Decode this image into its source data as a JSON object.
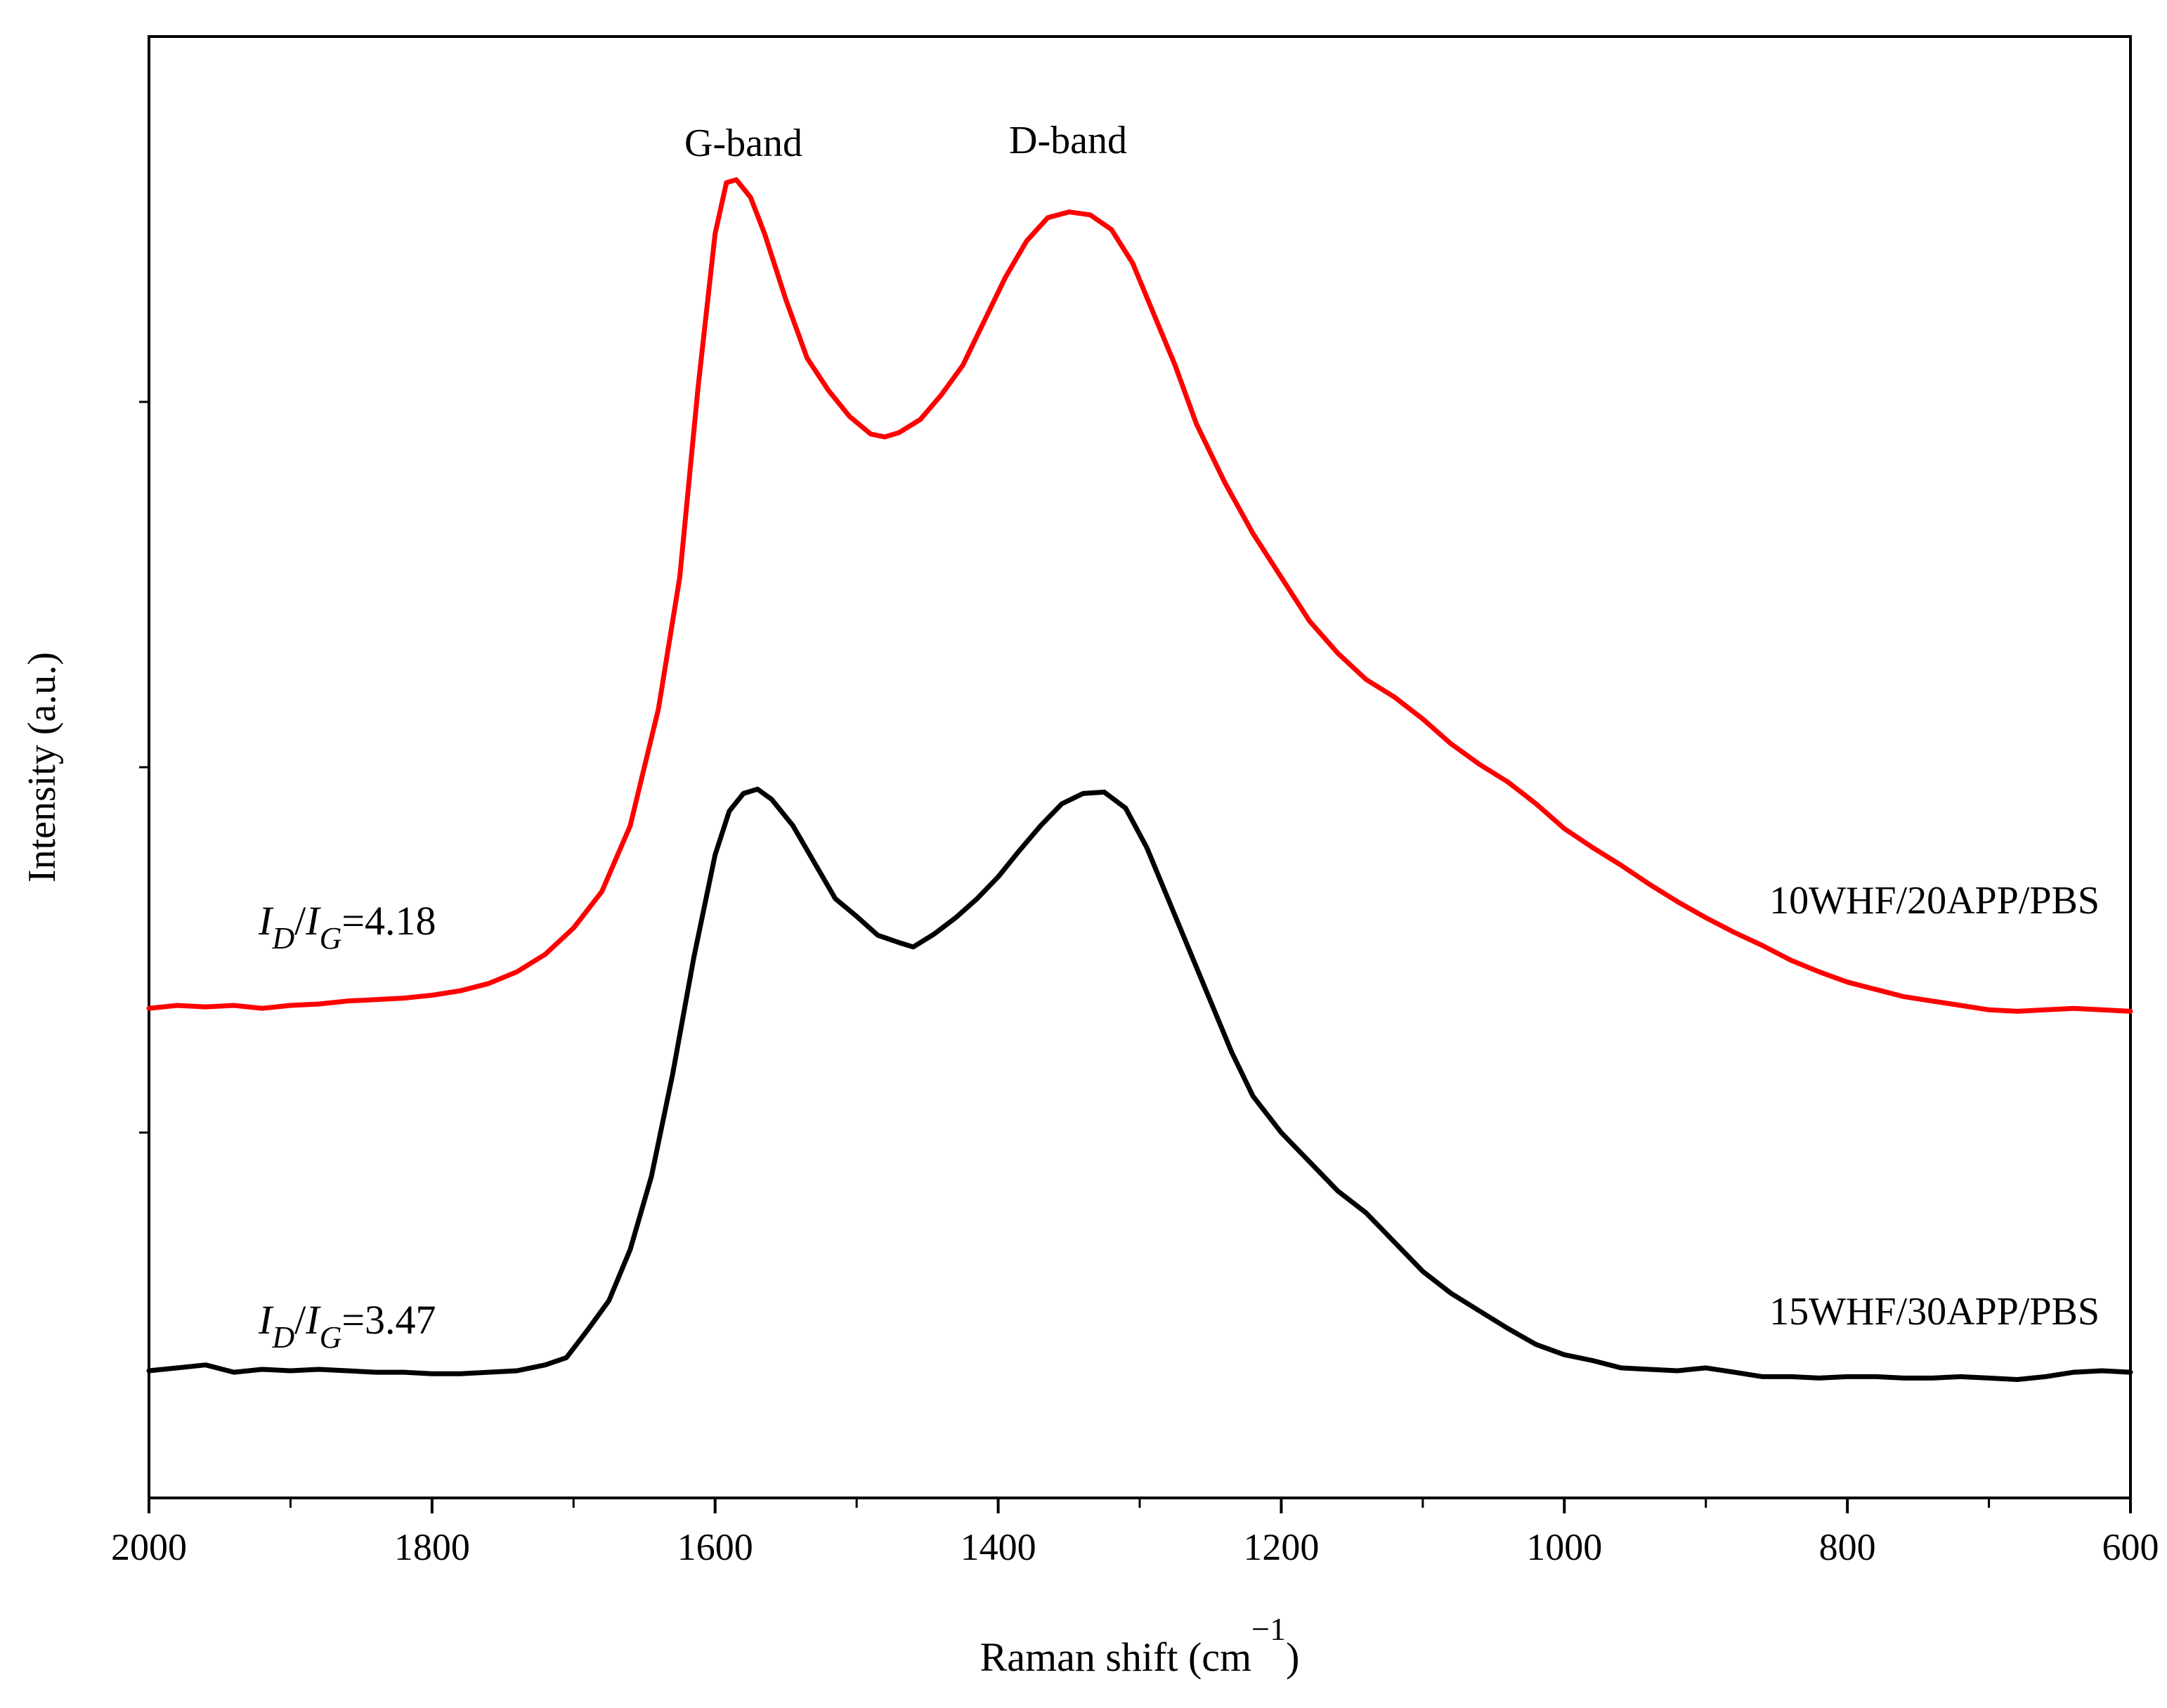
{
  "chart_data": {
    "type": "line",
    "title": "",
    "xlabel_main": "Raman shift (cm",
    "xlabel_sup": "−1",
    "xlabel_close": ")",
    "ylabel": "Intensity (a.u.)",
    "xlim": [
      2000,
      600
    ],
    "x_reversed": true,
    "x_tick_labels": [
      "2000",
      "1800",
      "1600",
      "1400",
      "1200",
      "1000",
      "800",
      "600"
    ],
    "x_ticks": [
      2000,
      1800,
      1600,
      1400,
      1200,
      1000,
      800,
      600
    ],
    "x_minor_ticks": [
      1900,
      1700,
      1500,
      1300,
      1100,
      900,
      700
    ],
    "ylim": [
      0,
      100
    ],
    "y_ticks_unlabeled": [
      25,
      50,
      75
    ],
    "grid": false,
    "annotations": {
      "g_band": "G-band",
      "d_band": "D-band"
    },
    "series": [
      {
        "name": "10WHF/20APP/PBS",
        "color": "#ff0000",
        "ratio_label": {
          "i1": "I",
          "sub1": "D",
          "slash": "/",
          "i2": "I",
          "sub2": "G",
          "value": "=4.18"
        },
        "points": [
          [
            2000,
            33.5
          ],
          [
            1980,
            33.7
          ],
          [
            1960,
            33.6
          ],
          [
            1940,
            33.7
          ],
          [
            1920,
            33.5
          ],
          [
            1900,
            33.7
          ],
          [
            1880,
            33.8
          ],
          [
            1860,
            34.0
          ],
          [
            1840,
            34.1
          ],
          [
            1820,
            34.2
          ],
          [
            1800,
            34.4
          ],
          [
            1780,
            34.7
          ],
          [
            1760,
            35.2
          ],
          [
            1740,
            36.0
          ],
          [
            1720,
            37.2
          ],
          [
            1700,
            39.0
          ],
          [
            1680,
            41.5
          ],
          [
            1660,
            46.0
          ],
          [
            1640,
            54.0
          ],
          [
            1625,
            63.0
          ],
          [
            1612,
            76.0
          ],
          [
            1600,
            86.5
          ],
          [
            1592,
            90.0
          ],
          [
            1585,
            90.2
          ],
          [
            1575,
            89.0
          ],
          [
            1565,
            86.5
          ],
          [
            1550,
            82.0
          ],
          [
            1535,
            78.0
          ],
          [
            1520,
            75.8
          ],
          [
            1505,
            74.0
          ],
          [
            1490,
            72.8
          ],
          [
            1480,
            72.6
          ],
          [
            1470,
            72.9
          ],
          [
            1455,
            73.8
          ],
          [
            1440,
            75.5
          ],
          [
            1425,
            77.5
          ],
          [
            1410,
            80.5
          ],
          [
            1395,
            83.5
          ],
          [
            1380,
            86.0
          ],
          [
            1365,
            87.6
          ],
          [
            1350,
            88.0
          ],
          [
            1335,
            87.8
          ],
          [
            1320,
            86.8
          ],
          [
            1305,
            84.5
          ],
          [
            1290,
            81.0
          ],
          [
            1275,
            77.5
          ],
          [
            1260,
            73.5
          ],
          [
            1240,
            69.5
          ],
          [
            1220,
            66.0
          ],
          [
            1200,
            63.0
          ],
          [
            1180,
            60.0
          ],
          [
            1160,
            57.8
          ],
          [
            1140,
            56.0
          ],
          [
            1120,
            54.8
          ],
          [
            1100,
            53.3
          ],
          [
            1080,
            51.6
          ],
          [
            1060,
            50.2
          ],
          [
            1040,
            49.0
          ],
          [
            1020,
            47.5
          ],
          [
            1000,
            45.8
          ],
          [
            980,
            44.5
          ],
          [
            960,
            43.3
          ],
          [
            940,
            42.0
          ],
          [
            920,
            40.8
          ],
          [
            900,
            39.7
          ],
          [
            880,
            38.7
          ],
          [
            860,
            37.8
          ],
          [
            840,
            36.8
          ],
          [
            820,
            36.0
          ],
          [
            800,
            35.3
          ],
          [
            780,
            34.8
          ],
          [
            760,
            34.3
          ],
          [
            740,
            34.0
          ],
          [
            720,
            33.7
          ],
          [
            700,
            33.4
          ],
          [
            680,
            33.3
          ],
          [
            660,
            33.4
          ],
          [
            640,
            33.5
          ],
          [
            620,
            33.4
          ],
          [
            600,
            33.3
          ]
        ]
      },
      {
        "name": "15WHF/30APP/PBS",
        "color": "#000000",
        "ratio_label": {
          "i1": "I",
          "sub1": "D",
          "slash": "/",
          "i2": "I",
          "sub2": "G",
          "value": "=3.47"
        },
        "points": [
          [
            2000,
            8.7
          ],
          [
            1980,
            8.9
          ],
          [
            1960,
            9.1
          ],
          [
            1940,
            8.6
          ],
          [
            1920,
            8.8
          ],
          [
            1900,
            8.7
          ],
          [
            1880,
            8.8
          ],
          [
            1860,
            8.7
          ],
          [
            1840,
            8.6
          ],
          [
            1820,
            8.6
          ],
          [
            1800,
            8.5
          ],
          [
            1780,
            8.5
          ],
          [
            1760,
            8.6
          ],
          [
            1740,
            8.7
          ],
          [
            1720,
            9.1
          ],
          [
            1705,
            9.6
          ],
          [
            1690,
            11.5
          ],
          [
            1675,
            13.5
          ],
          [
            1660,
            17.0
          ],
          [
            1645,
            22.0
          ],
          [
            1630,
            29.0
          ],
          [
            1615,
            37.0
          ],
          [
            1600,
            44.0
          ],
          [
            1590,
            47.0
          ],
          [
            1580,
            48.2
          ],
          [
            1570,
            48.5
          ],
          [
            1560,
            47.8
          ],
          [
            1545,
            46.0
          ],
          [
            1530,
            43.5
          ],
          [
            1515,
            41.0
          ],
          [
            1500,
            39.8
          ],
          [
            1485,
            38.5
          ],
          [
            1470,
            38.0
          ],
          [
            1460,
            37.7
          ],
          [
            1445,
            38.6
          ],
          [
            1430,
            39.7
          ],
          [
            1415,
            41.0
          ],
          [
            1400,
            42.5
          ],
          [
            1385,
            44.3
          ],
          [
            1370,
            46.0
          ],
          [
            1355,
            47.5
          ],
          [
            1340,
            48.2
          ],
          [
            1325,
            48.3
          ],
          [
            1310,
            47.2
          ],
          [
            1295,
            44.5
          ],
          [
            1280,
            41.0
          ],
          [
            1265,
            37.5
          ],
          [
            1250,
            34.0
          ],
          [
            1235,
            30.5
          ],
          [
            1220,
            27.5
          ],
          [
            1200,
            25.0
          ],
          [
            1180,
            23.0
          ],
          [
            1160,
            21.0
          ],
          [
            1140,
            19.5
          ],
          [
            1120,
            17.5
          ],
          [
            1100,
            15.5
          ],
          [
            1080,
            14.0
          ],
          [
            1060,
            12.8
          ],
          [
            1040,
            11.6
          ],
          [
            1020,
            10.5
          ],
          [
            1000,
            9.8
          ],
          [
            980,
            9.4
          ],
          [
            960,
            8.9
          ],
          [
            940,
            8.8
          ],
          [
            920,
            8.7
          ],
          [
            900,
            8.9
          ],
          [
            880,
            8.6
          ],
          [
            860,
            8.3
          ],
          [
            840,
            8.3
          ],
          [
            820,
            8.2
          ],
          [
            800,
            8.3
          ],
          [
            780,
            8.3
          ],
          [
            760,
            8.2
          ],
          [
            740,
            8.2
          ],
          [
            720,
            8.3
          ],
          [
            700,
            8.2
          ],
          [
            680,
            8.1
          ],
          [
            660,
            8.3
          ],
          [
            640,
            8.6
          ],
          [
            620,
            8.7
          ],
          [
            600,
            8.6
          ]
        ]
      }
    ]
  }
}
